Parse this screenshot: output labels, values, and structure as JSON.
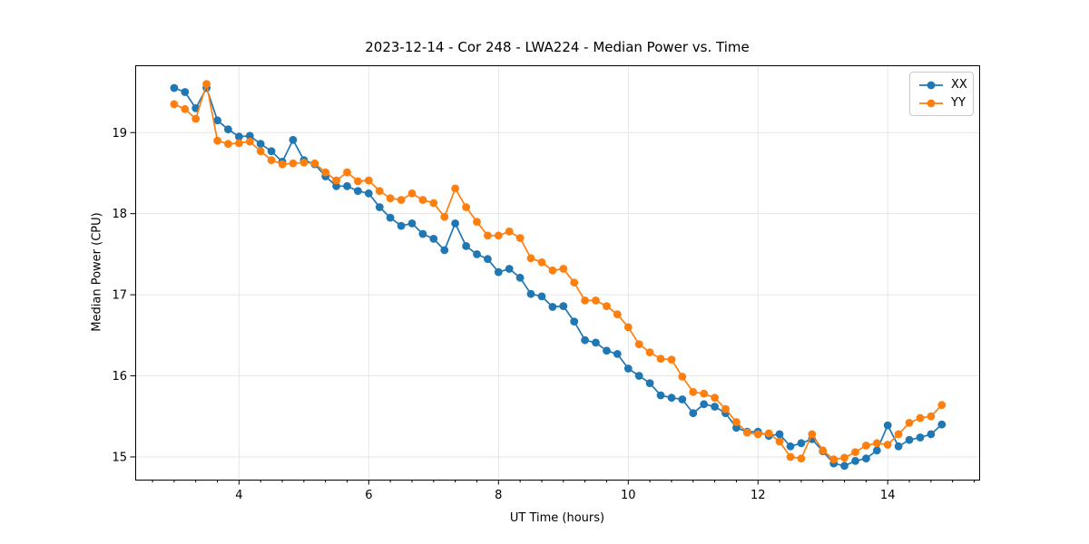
{
  "chart_data": {
    "type": "line",
    "title": "2023-12-14 - Cor 248 - LWA224 - Median Power vs. Time",
    "xlabel": "UT Time (hours)",
    "ylabel": "Median Power (CPU)",
    "xlim": [
      2.4,
      15.41
    ],
    "ylim": [
      14.72,
      19.83
    ],
    "xticks": [
      4,
      6,
      8,
      10,
      12,
      14
    ],
    "yticks": [
      15,
      16,
      17,
      18,
      19
    ],
    "minor_xtick_step": 0.33333,
    "grid": true,
    "grid_color": "#e6e6e6",
    "background": "#ffffff",
    "legend_position": "upper right",
    "x": [
      3.0,
      3.167,
      3.333,
      3.5,
      3.667,
      3.833,
      4.0,
      4.167,
      4.333,
      4.5,
      4.667,
      4.833,
      5.0,
      5.167,
      5.333,
      5.5,
      5.667,
      5.833,
      6.0,
      6.167,
      6.333,
      6.5,
      6.667,
      6.833,
      7.0,
      7.167,
      7.333,
      7.5,
      7.667,
      7.833,
      8.0,
      8.167,
      8.333,
      8.5,
      8.667,
      8.833,
      9.0,
      9.167,
      9.333,
      9.5,
      9.667,
      9.833,
      10.0,
      10.167,
      10.333,
      10.5,
      10.667,
      10.833,
      11.0,
      11.167,
      11.333,
      11.5,
      11.667,
      11.833,
      12.0,
      12.167,
      12.333,
      12.5,
      12.667,
      12.833,
      13.0,
      13.167,
      13.333,
      13.5,
      13.667,
      13.833,
      14.0,
      14.167,
      14.333,
      14.5,
      14.667,
      14.833
    ],
    "series": [
      {
        "name": "XX",
        "color": "#1f77b4",
        "values": [
          19.55,
          19.5,
          19.3,
          19.55,
          19.15,
          19.04,
          18.95,
          18.96,
          18.86,
          18.77,
          18.64,
          18.91,
          18.66,
          18.61,
          18.46,
          18.34,
          18.34,
          18.28,
          18.25,
          18.08,
          17.95,
          17.85,
          17.88,
          17.75,
          17.69,
          17.55,
          17.88,
          17.6,
          17.5,
          17.44,
          17.28,
          17.32,
          17.21,
          17.01,
          16.98,
          16.85,
          16.86,
          16.67,
          16.44,
          16.41,
          16.31,
          16.27,
          16.09,
          16.0,
          15.91,
          15.76,
          15.73,
          15.71,
          15.54,
          15.65,
          15.62,
          15.54,
          15.36,
          15.31,
          15.31,
          15.26,
          15.28,
          15.13,
          15.17,
          15.22,
          15.07,
          14.92,
          14.89,
          14.95,
          14.98,
          15.08,
          15.39,
          15.13,
          15.21,
          15.24,
          15.28,
          15.4
        ]
      },
      {
        "name": "YY",
        "color": "#ff7f0e",
        "values": [
          19.35,
          19.29,
          19.17,
          19.6,
          18.9,
          18.86,
          18.87,
          18.89,
          18.77,
          18.66,
          18.61,
          18.62,
          18.63,
          18.62,
          18.51,
          18.41,
          18.51,
          18.4,
          18.41,
          18.28,
          18.19,
          18.17,
          18.25,
          18.17,
          18.13,
          17.96,
          18.31,
          18.08,
          17.9,
          17.73,
          17.73,
          17.78,
          17.7,
          17.45,
          17.4,
          17.3,
          17.32,
          17.15,
          16.93,
          16.93,
          16.86,
          16.76,
          16.6,
          16.39,
          16.29,
          16.21,
          16.2,
          15.99,
          15.8,
          15.78,
          15.73,
          15.59,
          15.43,
          15.3,
          15.28,
          15.29,
          15.19,
          15.0,
          14.98,
          15.28,
          15.08,
          14.97,
          14.99,
          15.06,
          15.14,
          15.17,
          15.15,
          15.28,
          15.42,
          15.48,
          15.5,
          15.64
        ]
      }
    ]
  }
}
